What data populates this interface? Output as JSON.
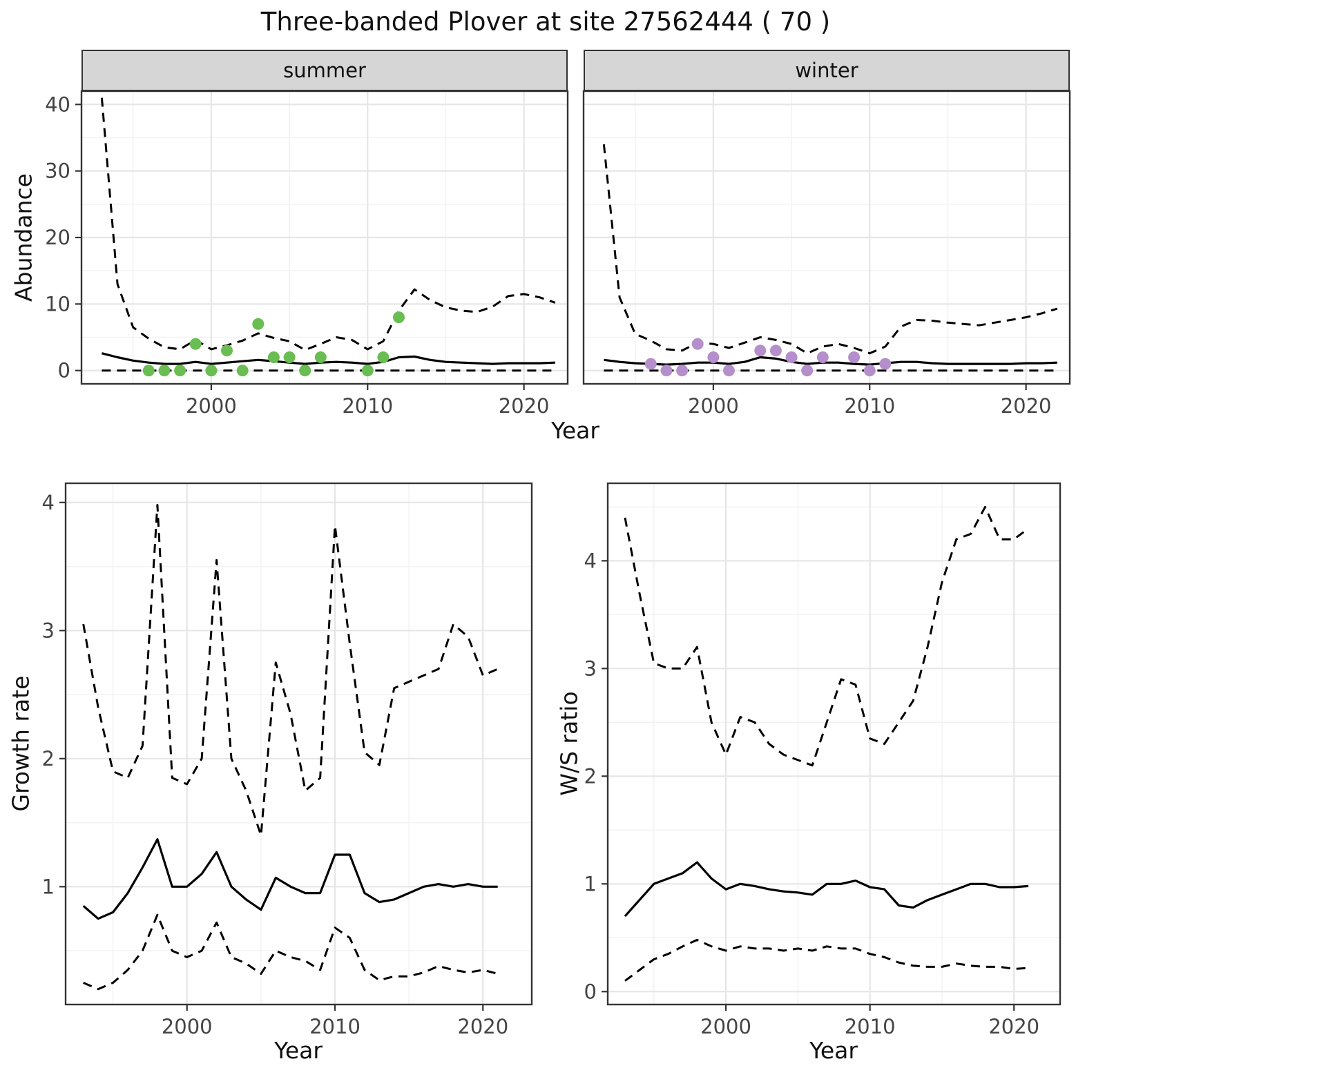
{
  "title": "Three-banded Plover at site 27562444 ( 70 )",
  "colors": {
    "summer_points": "#69bd52",
    "winter_points": "#b58fcb",
    "line": "#000000",
    "strip_bg": "#d6d6d6",
    "grid_major": "#e6e6e6",
    "grid_minor": "#f2f2f2",
    "panel_border": "#333333",
    "tick_text": "#444444"
  },
  "chart_data": [
    {
      "type": "line",
      "panel": "abundance-summer",
      "facet_label": "summer",
      "xlabel": "Year",
      "ylabel": "Abundance",
      "xlim": [
        1991.7,
        2022.8
      ],
      "ylim": [
        -2,
        42
      ],
      "xticks": [
        2000,
        2010,
        2020
      ],
      "xminor": [
        1995,
        2005,
        2015
      ],
      "yticks": [
        0,
        10,
        20,
        30,
        40
      ],
      "yminor": [
        5,
        15,
        25,
        35
      ],
      "x": [
        1993,
        1994,
        1995,
        1996,
        1997,
        1998,
        1999,
        2000,
        2001,
        2002,
        2003,
        2004,
        2005,
        2006,
        2007,
        2008,
        2009,
        2010,
        2011,
        2012,
        2013,
        2014,
        2015,
        2016,
        2017,
        2018,
        2019,
        2020,
        2021,
        2022
      ],
      "series": [
        {
          "name": "upper-credible",
          "style": "dashed",
          "values": [
            41,
            13,
            6.5,
            4.8,
            3.5,
            3.2,
            4.6,
            3.2,
            3.8,
            4.5,
            5.6,
            4.9,
            4.4,
            3.1,
            4.0,
            5.0,
            4.6,
            3.2,
            4.4,
            9.0,
            12.2,
            10.6,
            9.5,
            9.0,
            8.8,
            9.6,
            11.2,
            11.5,
            11.0,
            10.2
          ]
        },
        {
          "name": "median",
          "style": "solid",
          "values": [
            2.6,
            2.0,
            1.5,
            1.2,
            1.0,
            1.0,
            1.3,
            1.0,
            1.2,
            1.4,
            1.6,
            1.4,
            1.2,
            1.0,
            1.2,
            1.3,
            1.2,
            1.0,
            1.3,
            2.0,
            2.1,
            1.6,
            1.3,
            1.2,
            1.1,
            1.0,
            1.1,
            1.1,
            1.1,
            1.2
          ]
        },
        {
          "name": "lower-credible",
          "style": "dashed",
          "values": [
            0,
            0,
            0,
            0,
            0,
            0,
            0,
            0,
            0,
            0,
            0,
            0,
            0,
            0,
            0,
            0,
            0,
            0,
            0,
            0,
            0,
            0,
            0,
            0,
            0,
            0,
            0,
            0,
            0,
            0
          ]
        }
      ],
      "points": {
        "name": "observed-summer-counts",
        "color": "#69bd52",
        "x": [
          1996,
          1997,
          1998,
          1999,
          2000,
          2001,
          2002,
          2003,
          2004,
          2005,
          2006,
          2007,
          2010,
          2011,
          2012
        ],
        "y": [
          0,
          0,
          0,
          4,
          0,
          3,
          0,
          7,
          2,
          2,
          0,
          2,
          0,
          2,
          8
        ]
      }
    },
    {
      "type": "line",
      "panel": "abundance-winter",
      "facet_label": "winter",
      "xlabel": "Year",
      "xlim": [
        1991.7,
        2022.8
      ],
      "ylim": [
        -2,
        42
      ],
      "xticks": [
        2000,
        2010,
        2020
      ],
      "xminor": [
        1995,
        2005,
        2015
      ],
      "yticks": [
        0,
        10,
        20,
        30,
        40
      ],
      "yminor": [
        5,
        15,
        25,
        35
      ],
      "x": [
        1993,
        1994,
        1995,
        1996,
        1997,
        1998,
        1999,
        2000,
        2001,
        2002,
        2003,
        2004,
        2005,
        2006,
        2007,
        2008,
        2009,
        2010,
        2011,
        2012,
        2013,
        2014,
        2015,
        2016,
        2017,
        2018,
        2019,
        2020,
        2021,
        2022
      ],
      "series": [
        {
          "name": "upper-credible",
          "style": "dashed",
          "values": [
            34,
            11,
            5.5,
            4.5,
            3.2,
            3.0,
            4.2,
            4.0,
            3.4,
            4.2,
            5.0,
            4.6,
            4.0,
            2.6,
            3.6,
            4.0,
            3.4,
            2.6,
            3.6,
            6.6,
            7.6,
            7.5,
            7.2,
            7.0,
            6.8,
            7.2,
            7.6,
            8.0,
            8.6,
            9.3
          ]
        },
        {
          "name": "median",
          "style": "solid",
          "values": [
            1.6,
            1.3,
            1.1,
            1.0,
            0.9,
            1.0,
            1.2,
            1.2,
            1.0,
            1.3,
            2.0,
            1.8,
            1.3,
            1.0,
            1.2,
            1.2,
            1.0,
            0.9,
            1.1,
            1.3,
            1.3,
            1.1,
            1.0,
            1.0,
            1.0,
            1.0,
            1.0,
            1.1,
            1.1,
            1.2
          ]
        },
        {
          "name": "lower-credible",
          "style": "dashed",
          "values": [
            0,
            0,
            0,
            0,
            0,
            0,
            0,
            0,
            0,
            0,
            0,
            0,
            0,
            0,
            0,
            0,
            0,
            0,
            0,
            0,
            0,
            0,
            0,
            0,
            0,
            0,
            0,
            0,
            0,
            0
          ]
        }
      ],
      "points": {
        "name": "observed-winter-counts",
        "color": "#b58fcb",
        "x": [
          1996,
          1997,
          1998,
          1999,
          2000,
          2001,
          2003,
          2004,
          2005,
          2006,
          2007,
          2009,
          2010,
          2011
        ],
        "y": [
          1,
          0,
          0,
          4,
          2,
          0,
          3,
          3,
          2,
          0,
          2,
          2,
          0,
          1
        ]
      }
    },
    {
      "type": "line",
      "panel": "growth-rate",
      "xlabel": "Year",
      "ylabel": "Growth rate",
      "xlim": [
        1991.8,
        2023.3
      ],
      "ylim": [
        0.08,
        4.15
      ],
      "xticks": [
        2000,
        2010,
        2020
      ],
      "xminor": [
        1995,
        2005,
        2015
      ],
      "yticks": [
        1,
        2,
        3,
        4
      ],
      "yminor": [
        0.5,
        1.5,
        2.5,
        3.5
      ],
      "x": [
        1993,
        1994,
        1995,
        1996,
        1997,
        1998,
        1999,
        2000,
        2001,
        2002,
        2003,
        2004,
        2005,
        2006,
        2007,
        2008,
        2009,
        2010,
        2011,
        2012,
        2013,
        2014,
        2015,
        2016,
        2017,
        2018,
        2019,
        2020,
        2021
      ],
      "series": [
        {
          "name": "upper-credible",
          "style": "dashed",
          "values": [
            3.05,
            2.4,
            1.9,
            1.85,
            2.1,
            3.98,
            1.85,
            1.8,
            2.0,
            3.55,
            2.0,
            1.75,
            1.4,
            2.75,
            2.35,
            1.75,
            1.85,
            3.82,
            2.9,
            2.05,
            1.95,
            2.55,
            2.6,
            2.65,
            2.7,
            3.05,
            2.95,
            2.65,
            2.7
          ]
        },
        {
          "name": "median",
          "style": "solid",
          "values": [
            0.85,
            0.75,
            0.8,
            0.95,
            1.15,
            1.37,
            1.0,
            1.0,
            1.1,
            1.27,
            1.0,
            0.9,
            0.82,
            1.07,
            1.0,
            0.95,
            0.95,
            1.25,
            1.25,
            0.95,
            0.88,
            0.9,
            0.95,
            1.0,
            1.02,
            1.0,
            1.02,
            1.0,
            1.0
          ]
        },
        {
          "name": "lower-credible",
          "style": "dashed",
          "values": [
            0.25,
            0.2,
            0.25,
            0.35,
            0.5,
            0.78,
            0.5,
            0.45,
            0.5,
            0.72,
            0.45,
            0.4,
            0.32,
            0.5,
            0.45,
            0.42,
            0.35,
            0.68,
            0.6,
            0.35,
            0.27,
            0.3,
            0.3,
            0.33,
            0.38,
            0.35,
            0.33,
            0.35,
            0.32
          ]
        }
      ]
    },
    {
      "type": "line",
      "panel": "ws-ratio",
      "xlabel": "Year",
      "ylabel": "W/S ratio",
      "xlim": [
        1991.8,
        2023.2
      ],
      "ylim": [
        -0.12,
        4.72
      ],
      "xticks": [
        2000,
        2010,
        2020
      ],
      "xminor": [
        1995,
        2005,
        2015
      ],
      "yticks": [
        0,
        1,
        2,
        3,
        4
      ],
      "yminor": [
        0.5,
        1.5,
        2.5,
        3.5,
        4.5
      ],
      "x": [
        1993,
        1994,
        1995,
        1996,
        1997,
        1998,
        1999,
        2000,
        2001,
        2002,
        2003,
        2004,
        2005,
        2006,
        2007,
        2008,
        2009,
        2010,
        2011,
        2012,
        2013,
        2014,
        2015,
        2016,
        2017,
        2018,
        2019,
        2020,
        2021
      ],
      "series": [
        {
          "name": "upper-credible",
          "style": "dashed",
          "values": [
            4.4,
            3.7,
            3.05,
            3.0,
            3.0,
            3.2,
            2.5,
            2.2,
            2.55,
            2.5,
            2.3,
            2.2,
            2.15,
            2.1,
            2.5,
            2.9,
            2.85,
            2.35,
            2.3,
            2.5,
            2.7,
            3.2,
            3.8,
            4.2,
            4.25,
            4.5,
            4.2,
            4.2,
            4.3
          ]
        },
        {
          "name": "median",
          "style": "solid",
          "values": [
            0.7,
            0.85,
            1.0,
            1.05,
            1.1,
            1.2,
            1.05,
            0.95,
            1.0,
            0.98,
            0.95,
            0.93,
            0.92,
            0.9,
            1.0,
            1.0,
            1.03,
            0.97,
            0.95,
            0.8,
            0.78,
            0.85,
            0.9,
            0.95,
            1.0,
            1.0,
            0.97,
            0.97,
            0.98
          ]
        },
        {
          "name": "lower-credible",
          "style": "dashed",
          "values": [
            0.1,
            0.2,
            0.3,
            0.35,
            0.42,
            0.48,
            0.42,
            0.38,
            0.42,
            0.4,
            0.4,
            0.38,
            0.4,
            0.38,
            0.42,
            0.4,
            0.4,
            0.35,
            0.32,
            0.27,
            0.24,
            0.23,
            0.23,
            0.26,
            0.24,
            0.23,
            0.23,
            0.21,
            0.22
          ]
        }
      ]
    }
  ]
}
